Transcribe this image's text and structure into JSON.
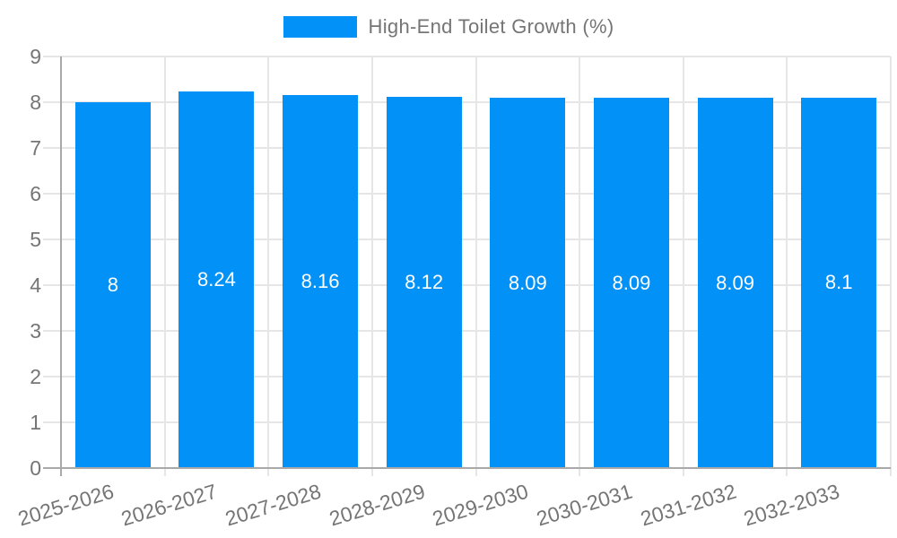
{
  "legend": {
    "label": "High-End Toilet Growth (%)"
  },
  "chart_data": {
    "type": "bar",
    "title": "High-End Toilet Growth (%)",
    "categories": [
      "2025-2026",
      "2026-2027",
      "2027-2028",
      "2028-2029",
      "2029-2030",
      "2030-2031",
      "2031-2032",
      "2032-2033"
    ],
    "values": [
      8,
      8.24,
      8.16,
      8.12,
      8.09,
      8.09,
      8.09,
      8.1
    ],
    "value_labels": [
      "8",
      "8.24",
      "8.16",
      "8.12",
      "8.09",
      "8.09",
      "8.09",
      "8.1"
    ],
    "xlabel": "",
    "ylabel": "",
    "ylim": [
      0,
      9
    ],
    "yticks": [
      0,
      1,
      2,
      3,
      4,
      5,
      6,
      7,
      8,
      9
    ],
    "grid": true,
    "legend_position": "top center",
    "value_label_position": "inside middle",
    "x_tick_label_rotation_deg": -17
  },
  "colors": {
    "bar": "#0291f7",
    "grid": "#e6e6e6",
    "axis": "#a9a9a9",
    "text": "#757575",
    "value_label": "#ffffff",
    "background": "#ffffff"
  }
}
